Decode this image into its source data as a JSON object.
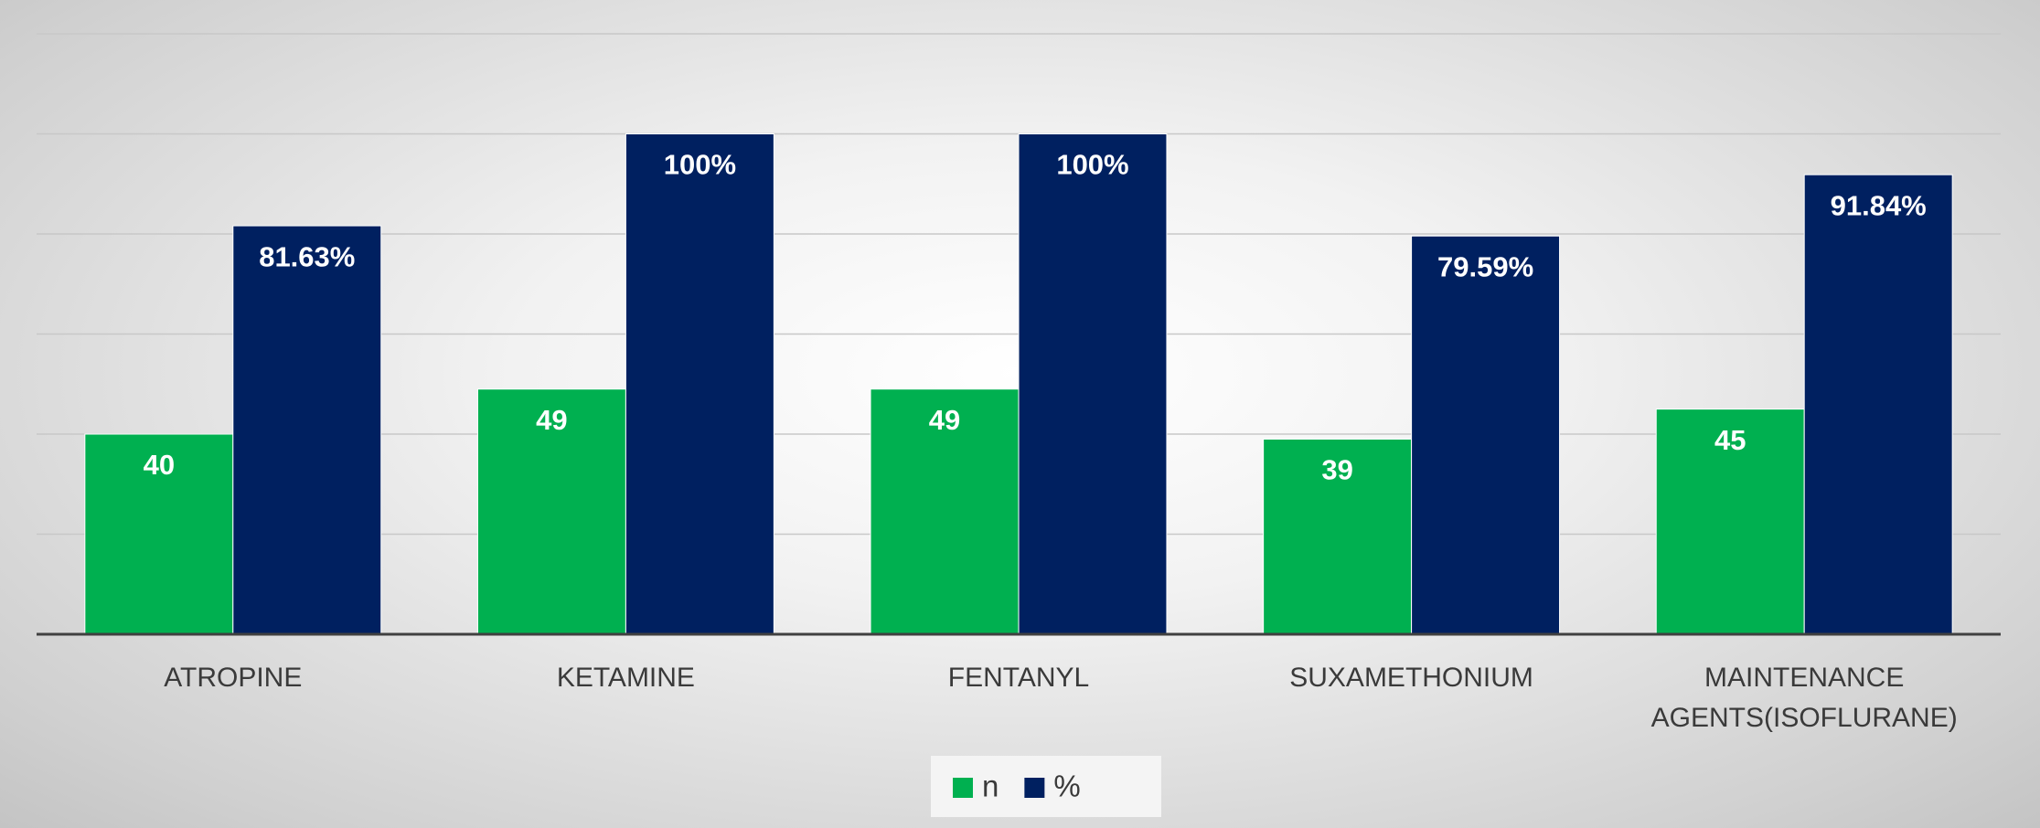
{
  "chart_data": {
    "type": "bar",
    "categories": [
      "ATROPINE",
      "KETAMINE",
      "FENTANYL",
      "SUXAMETHONIUM",
      "MAINTENANCE AGENTS(ISOFLURANE)"
    ],
    "series": [
      {
        "name": "n",
        "color": "#00b050",
        "values": [
          40,
          49,
          49,
          39,
          45
        ]
      },
      {
        "name": "%",
        "color": "#002060",
        "values": [
          81.63,
          100,
          100,
          79.59,
          91.84
        ],
        "value_labels": [
          "81.63%",
          "100%",
          "100%",
          "79.59%",
          "91.84%"
        ]
      }
    ],
    "ylim": [
      0,
      120
    ],
    "yticks": [
      0,
      20,
      40,
      60,
      80,
      100,
      120
    ],
    "grid": true,
    "legend": "bottom"
  }
}
